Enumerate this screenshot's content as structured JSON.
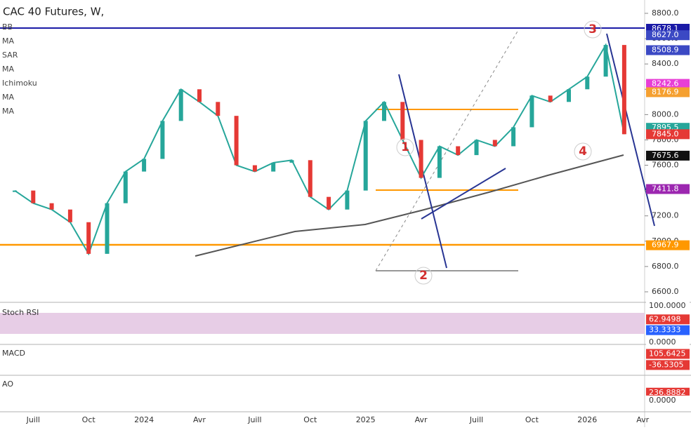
{
  "chart_data": {
    "type": "line",
    "title": "CAC 40 Futures, W,",
    "indicators": [
      "BB",
      "MA",
      "SAR",
      "MA",
      "Ichimoku",
      "MA",
      "MA"
    ],
    "categories": [
      null,
      "Juill",
      null,
      null,
      "Oct",
      null,
      null,
      "2024",
      null,
      null,
      "Avr",
      null,
      null,
      "Juill",
      null,
      null,
      "Oct",
      null,
      null,
      "2025",
      null,
      null,
      "Avr",
      null,
      null,
      "Juill",
      null,
      null,
      "Oct",
      null,
      null,
      "2026",
      null,
      null,
      "Avr"
    ],
    "series": [
      {
        "name": "CAC 40 Futures",
        "color": "#26a69a",
        "values": [
          7400,
          7300,
          7250,
          7150,
          6900,
          7300,
          7550,
          7650,
          7950,
          8200,
          8100,
          7990,
          7600,
          7550,
          7620,
          7640,
          7350,
          7250,
          7400,
          7950,
          8100,
          7800,
          7500,
          7750,
          7680,
          7800,
          7750,
          7900,
          8150,
          8100,
          8200,
          8300,
          8550,
          7845,
          null
        ]
      }
    ],
    "ylim": [
      6500,
      8900
    ],
    "yticks": [
      {
        "value": 6600,
        "label": "6600.0"
      },
      {
        "value": 6800,
        "label": "6800.0"
      },
      {
        "value": 7000,
        "label": "7000.0"
      },
      {
        "value": 7200,
        "label": "7200.0"
      },
      {
        "value": 7400,
        "label": "7400.0"
      },
      {
        "value": 7600,
        "label": "7600.0"
      },
      {
        "value": 7800,
        "label": "7800.0"
      },
      {
        "value": 8000,
        "label": "8000.0"
      },
      {
        "value": 8200,
        "label": "8200.0"
      },
      {
        "value": 8400,
        "label": "8400.0"
      },
      {
        "value": 8600,
        "label": "8600.0"
      },
      {
        "value": 8800,
        "label": "8800.0"
      }
    ],
    "price_tags": [
      {
        "value": 8678.1,
        "label": "8678.1",
        "color": "#1a1aa6"
      },
      {
        "value": 8627.0,
        "label": "8627.0",
        "color": "#3b49c4"
      },
      {
        "value": 8508.9,
        "label": "8508.9",
        "color": "#3b49c4"
      },
      {
        "value": 8242.6,
        "label": "8242.6",
        "color": "#e83fd6"
      },
      {
        "value": 8176.9,
        "label": "8176.9",
        "color": "#f5a030"
      },
      {
        "value": 7895.5,
        "label": "7895.5",
        "color": "#26a69a"
      },
      {
        "value": 7845.0,
        "label": "7845.0",
        "color": "#e53935"
      },
      {
        "value": 7675.6,
        "label": "7675.6",
        "color": "#111111"
      },
      {
        "value": 7411.8,
        "label": "7411.8",
        "color": "#9c27b0"
      },
      {
        "value": 6967.9,
        "label": "6967.9",
        "color": "#ff9800"
      }
    ],
    "annotations": [
      "1",
      "2",
      "3",
      "4"
    ],
    "panels": [
      {
        "name": "Stoch RSI",
        "ylim": [
          0,
          100
        ],
        "ticks": [
          {
            "value": 100,
            "label": "100.0000",
            "color": "#ffffff"
          },
          {
            "value": 62.9498,
            "label": "62.9498",
            "color": "#e53935"
          },
          {
            "value": 33.3333,
            "label": "33.3333",
            "color": "#2962ff"
          },
          {
            "value": 0,
            "label": "0.0000",
            "color": "#ffffff"
          }
        ]
      },
      {
        "name": "MACD",
        "ylim": [
          -150,
          200
        ],
        "ticks": [
          {
            "value": 105.6425,
            "label": "105.6425",
            "color": "#e53935"
          },
          {
            "value": -36.5305,
            "label": "-36.5305",
            "color": "#e53935"
          }
        ]
      },
      {
        "name": "AO",
        "ylim": [
          -300,
          700
        ],
        "ticks": [
          {
            "value": 236.8882,
            "label": "236.8882",
            "color": "#e53935"
          },
          {
            "value": 0,
            "label": "0.0000",
            "color": "#ffffff"
          }
        ]
      }
    ]
  }
}
